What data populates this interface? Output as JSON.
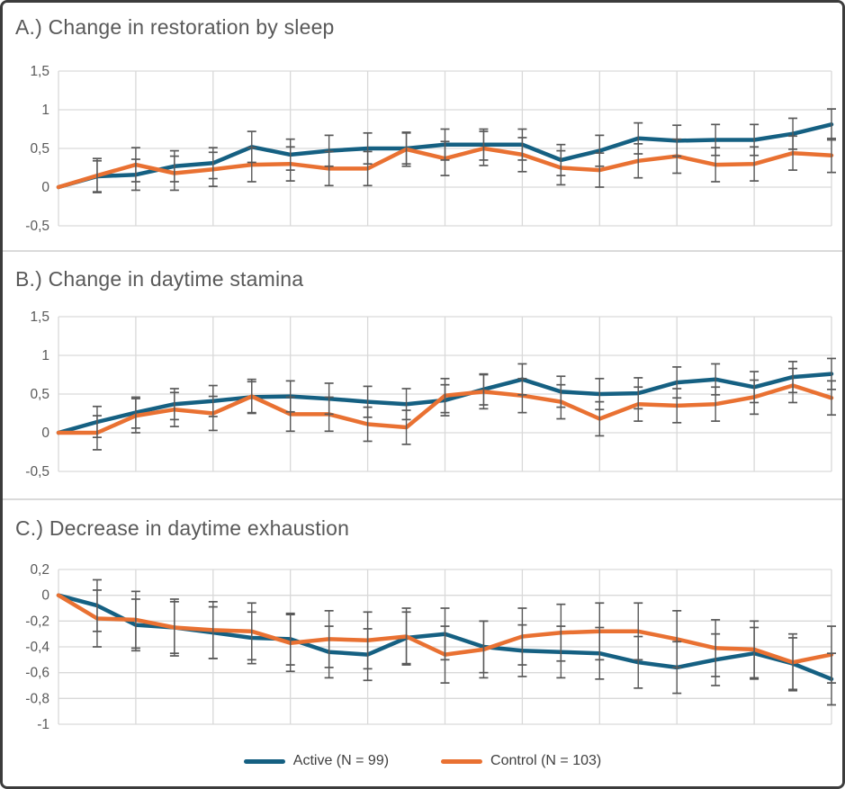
{
  "figure": {
    "background": "#ffffff",
    "border_color": "#3c3c3c",
    "gridline_color": "#d9d9d9",
    "error_bar_color": "#595959",
    "title_color": "#595959",
    "tick_label_color": "#595959"
  },
  "legend": {
    "items": [
      {
        "label": "Active (N = 99)",
        "color": "#156082"
      },
      {
        "label": "Control (N = 103)",
        "color": "#E97132"
      }
    ]
  },
  "chart_data": [
    {
      "type": "line",
      "panel": "A",
      "title": "A.) Change in restoration by sleep",
      "x": [
        0,
        1,
        2,
        3,
        4,
        5,
        6,
        7,
        8,
        9,
        10,
        11,
        12,
        13,
        14,
        15,
        16,
        17,
        18,
        19,
        20
      ],
      "x_axis": {
        "tick_labels_visible": false,
        "gridline_every_n_points": 2
      },
      "ylim": [
        -0.5,
        1.5
      ],
      "y_tick_values": [
        1.5,
        1,
        0.5,
        0,
        -0.5
      ],
      "y_tick_labels": [
        "1,5",
        "1",
        "0,5",
        "0",
        "-0,5"
      ],
      "grid": true,
      "error_bars": {
        "half_width_active": 0.2,
        "half_width_control": 0.22,
        "first_point_omitted": true
      },
      "series": [
        {
          "name": "Active (N = 99)",
          "color": "#156082",
          "values": [
            0,
            0.14,
            0.16,
            0.27,
            0.31,
            0.52,
            0.42,
            0.47,
            0.5,
            0.5,
            0.55,
            0.55,
            0.55,
            0.35,
            0.47,
            0.63,
            0.6,
            0.61,
            0.61,
            0.69,
            0.81
          ]
        },
        {
          "name": "Control (N = 103)",
          "color": "#E97132",
          "values": [
            0,
            0.15,
            0.29,
            0.18,
            0.23,
            0.29,
            0.3,
            0.24,
            0.24,
            0.49,
            0.37,
            0.5,
            0.42,
            0.25,
            0.22,
            0.34,
            0.4,
            0.29,
            0.3,
            0.44,
            0.41
          ]
        }
      ]
    },
    {
      "type": "line",
      "panel": "B",
      "title": "B.) Change in daytime stamina",
      "x": [
        0,
        1,
        2,
        3,
        4,
        5,
        6,
        7,
        8,
        9,
        10,
        11,
        12,
        13,
        14,
        15,
        16,
        17,
        18,
        19,
        20
      ],
      "x_axis": {
        "tick_labels_visible": false,
        "gridline_every_n_points": 2
      },
      "ylim": [
        -0.5,
        1.5
      ],
      "y_tick_values": [
        1.5,
        1,
        0.5,
        0,
        -0.5
      ],
      "y_tick_labels": [
        "1,5",
        "1",
        "0,5",
        "0",
        "-0,5"
      ],
      "grid": true,
      "error_bars": {
        "half_width_active": 0.2,
        "half_width_control": 0.22,
        "first_point_omitted": true
      },
      "series": [
        {
          "name": "Active (N = 99)",
          "color": "#156082",
          "values": [
            0,
            0.14,
            0.26,
            0.37,
            0.41,
            0.46,
            0.47,
            0.44,
            0.4,
            0.37,
            0.42,
            0.56,
            0.69,
            0.53,
            0.5,
            0.51,
            0.65,
            0.69,
            0.59,
            0.72,
            0.76
          ]
        },
        {
          "name": "Control (N = 103)",
          "color": "#E97132",
          "values": [
            0,
            0.0,
            0.22,
            0.3,
            0.25,
            0.47,
            0.24,
            0.24,
            0.11,
            0.07,
            0.48,
            0.53,
            0.48,
            0.4,
            0.18,
            0.37,
            0.35,
            0.37,
            0.46,
            0.61,
            0.45
          ]
        }
      ]
    },
    {
      "type": "line",
      "panel": "C",
      "title": "C.) Decrease in daytime exhaustion",
      "x": [
        0,
        1,
        2,
        3,
        4,
        5,
        6,
        7,
        8,
        9,
        10,
        11,
        12,
        13,
        14,
        15,
        16,
        17,
        18,
        19,
        20
      ],
      "x_axis": {
        "tick_labels_visible": false,
        "gridline_every_n_points": 2
      },
      "ylim": [
        -1.0,
        0.2
      ],
      "y_tick_values": [
        0.2,
        0,
        -0.2,
        -0.4,
        -0.6,
        -0.8,
        -1
      ],
      "y_tick_labels": [
        "0,2",
        "0",
        "-0,2",
        "-0,4",
        "-0,6",
        "-0,8",
        "-1"
      ],
      "grid": true,
      "error_bars": {
        "half_width_active": 0.2,
        "half_width_control": 0.22,
        "first_point_omitted": true
      },
      "series": [
        {
          "name": "Active (N = 99)",
          "color": "#156082",
          "values": [
            0,
            -0.08,
            -0.23,
            -0.25,
            -0.29,
            -0.33,
            -0.34,
            -0.44,
            -0.46,
            -0.33,
            -0.3,
            -0.4,
            -0.43,
            -0.44,
            -0.45,
            -0.52,
            -0.56,
            -0.5,
            -0.45,
            -0.53,
            -0.65
          ]
        },
        {
          "name": "Control (N = 103)",
          "color": "#E97132",
          "values": [
            0,
            -0.18,
            -0.19,
            -0.25,
            -0.27,
            -0.28,
            -0.37,
            -0.34,
            -0.35,
            -0.32,
            -0.46,
            -0.42,
            -0.32,
            -0.29,
            -0.28,
            -0.28,
            -0.34,
            -0.41,
            -0.42,
            -0.52,
            -0.46
          ]
        }
      ]
    }
  ]
}
